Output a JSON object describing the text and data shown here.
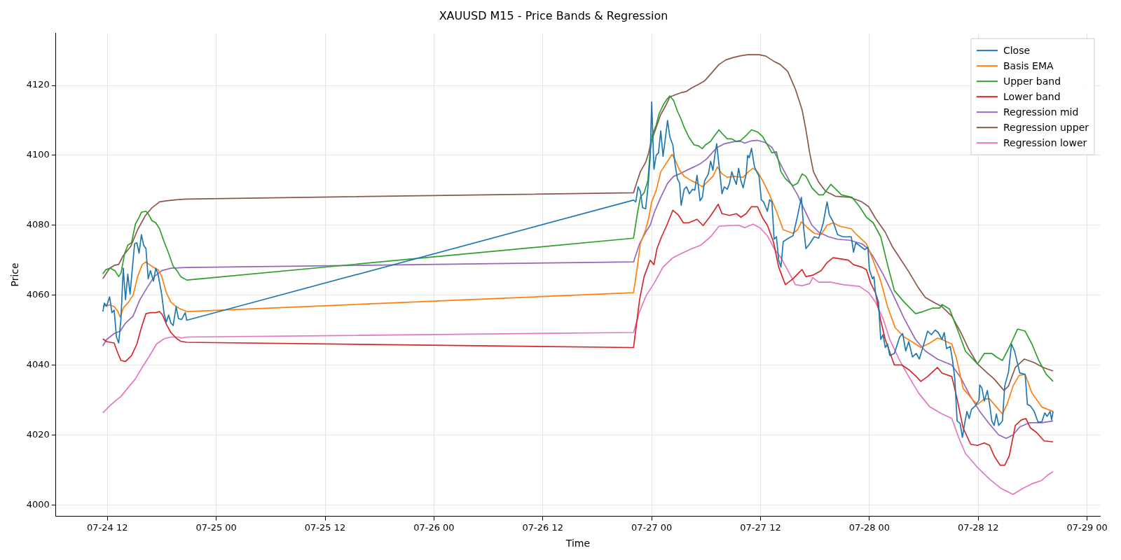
{
  "chart_data": {
    "type": "line",
    "title": "XAUUSD M15 - Price Bands & Regression",
    "xlabel": "Time",
    "ylabel": "Price",
    "xlim": [
      "--07-24T06:20",
      "--07-29T01:25"
    ],
    "ylim": [
      3996.7,
      4135
    ],
    "xticks": [
      {
        "value": "--07-24T12:00",
        "label": "07-24 12"
      },
      {
        "value": "--07-25T00:00",
        "label": "07-25 00"
      },
      {
        "value": "--07-25T12:00",
        "label": "07-25 12"
      },
      {
        "value": "--07-26T00:00",
        "label": "07-26 00"
      },
      {
        "value": "--07-26T12:00",
        "label": "07-26 12"
      },
      {
        "value": "--07-27T00:00",
        "label": "07-27 00"
      },
      {
        "value": "--07-27T12:00",
        "label": "07-27 12"
      },
      {
        "value": "--07-28T00:00",
        "label": "07-28 00"
      },
      {
        "value": "--07-28T12:00",
        "label": "07-28 12"
      },
      {
        "value": "--07-29T00:00",
        "label": "07-29 00"
      }
    ],
    "yticks": [
      4000,
      4020,
      4040,
      4060,
      4080,
      4100,
      4120
    ],
    "grid": true,
    "legend": "top right",
    "series": [
      {
        "name": "Close",
        "color": "#1f77b4",
        "x": [
          "--07-24T11:30",
          "--07-24T11:40",
          "--07-24T11:55",
          "--07-24T12:15",
          "--07-24T12:30",
          "--07-24T12:45",
          "--07-24T13:00",
          "--07-24T13:15",
          "--07-24T13:30",
          "--07-24T13:45",
          "--07-24T14:00",
          "--07-24T14:15",
          "--07-24T14:30",
          "--07-24T15:00",
          "--07-24T15:15",
          "--07-24T15:30",
          "--07-24T15:45",
          "--07-24T16:00",
          "--07-24T16:15",
          "--07-24T16:30",
          "--07-24T16:45",
          "--07-24T17:05",
          "--07-24T17:20",
          "--07-24T17:35",
          "--07-24T18:00",
          "--07-24T18:15",
          "--07-24T18:30",
          "--07-24T18:45",
          "--07-24T19:00",
          "--07-24T19:15",
          "--07-24T19:35",
          "--07-24T19:50",
          "--07-24T20:10",
          "--07-24T20:35",
          "--07-24T20:45",
          "--07-26T22:00",
          "--07-26T22:15",
          "--07-26T22:30",
          "--07-26T22:45",
          "--07-26T23:00",
          "--07-26T23:20",
          "--07-26T23:35",
          "--07-26T23:50",
          "--07-27T00:00",
          "--07-27T00:15",
          "--07-27T00:30",
          "--07-27T00:45",
          "--07-27T01:00",
          "--07-27T01:15",
          "--07-27T01:30",
          "--07-27T01:45",
          "--07-27T02:00",
          "--07-27T02:20",
          "--07-27T02:35",
          "--07-27T02:50",
          "--07-27T03:05",
          "--07-27T03:15",
          "--07-27T03:35",
          "--07-27T03:50",
          "--07-27T04:10",
          "--07-27T04:30",
          "--07-27T04:45",
          "--07-27T05:00",
          "--07-27T05:20",
          "--07-27T05:35",
          "--07-27T05:50",
          "--07-27T06:15",
          "--07-27T06:30",
          "--07-27T06:45",
          "--07-27T07:00",
          "--07-27T07:10",
          "--07-27T07:30",
          "--07-27T07:45",
          "--07-27T08:00",
          "--07-27T08:20",
          "--07-27T08:35",
          "--07-27T08:50",
          "--07-27T09:05",
          "--07-27T09:20",
          "--07-27T09:35",
          "--07-27T09:50",
          "--07-27T10:05",
          "--07-27T10:25",
          "--07-27T10:35",
          "--07-27T10:45",
          "--07-27T11:00",
          "--07-27T11:20",
          "--07-27T11:35",
          "--07-27T11:50",
          "--07-27T12:05",
          "--07-27T12:20",
          "--07-27T12:45",
          "--07-27T13:00",
          "--07-27T13:15",
          "--07-27T13:30",
          "--07-27T13:45",
          "--07-27T14:00",
          "--07-27T14:15",
          "--07-27T14:30",
          "--07-27T15:05",
          "--07-27T15:35",
          "--07-27T16:05",
          "--07-27T16:30",
          "--07-27T16:45",
          "--07-27T17:00",
          "--07-27T17:25",
          "--07-27T17:55",
          "--07-27T18:25",
          "--07-27T18:55",
          "--07-27T19:20",
          "--07-27T19:35",
          "--07-27T20:00",
          "--07-27T20:30",
          "--07-27T21:05",
          "--07-27T22:00",
          "--07-27T22:15",
          "--07-27T22:30",
          "--07-27T23:00",
          "--07-27T23:30",
          "--07-27T23:50",
          "--07-28T00:00",
          "--07-28T00:20",
          "--07-28T00:30",
          "--07-28T00:40",
          "--07-28T01:00",
          "--07-28T01:15",
          "--07-28T01:30",
          "--07-28T01:45",
          "--07-28T02:00",
          "--07-28T02:15",
          "--07-28T02:45",
          "--07-28T03:20",
          "--07-28T03:40",
          "--07-28T04:00",
          "--07-28T04:20",
          "--07-28T04:45",
          "--07-28T05:10",
          "--07-28T05:30",
          "--07-28T06:05",
          "--07-28T06:25",
          "--07-28T06:50",
          "--07-28T07:15",
          "--07-28T07:35",
          "--07-28T08:00",
          "--07-28T08:15",
          "--07-28T08:30",
          "--07-28T08:55",
          "--07-28T09:10",
          "--07-28T09:25",
          "--07-28T09:40",
          "--07-28T10:00",
          "--07-28T10:15",
          "--07-28T10:30",
          "--07-28T10:45",
          "--07-28T11:00",
          "--07-28T11:15",
          "--07-28T11:40",
          "--07-28T12:05",
          "--07-28T12:10",
          "--07-28T12:25",
          "--07-28T12:40",
          "--07-28T13:00",
          "--07-28T13:15",
          "--07-28T13:30",
          "--07-28T13:45",
          "--07-28T14:00",
          "--07-28T14:15",
          "--07-28T14:40",
          "--07-28T14:55",
          "--07-28T15:20",
          "--07-28T15:40",
          "--07-28T16:00",
          "--07-28T16:15",
          "--07-28T16:35",
          "--07-28T17:10",
          "--07-28T17:25",
          "--07-28T17:45",
          "--07-28T18:10",
          "--07-28T18:35",
          "--07-28T19:00",
          "--07-28T19:20",
          "--07-28T19:35",
          "--07-28T19:55",
          "--07-28T20:05",
          "--07-28T20:15"
        ],
        "values": [
          4055.3,
          4057.7,
          4056.8,
          4059.5,
          4055,
          4055.7,
          4048,
          4046.3,
          4053.3,
          4067.7,
          4058.7,
          4066,
          4060.3,
          4074.7,
          4075,
          4072,
          4077.3,
          4074.3,
          4073.3,
          4064.7,
          4067,
          4064,
          4067.7,
          4066,
          4060,
          4054.7,
          4052.3,
          4054.3,
          4052,
          4051.3,
          4056.7,
          4053.3,
          4053,
          4055,
          4052.8,
          4087.2,
          4086.7,
          4091,
          4089.7,
          4085,
          4084.7,
          4090.7,
          4099.3,
          4115.3,
          4096,
          4100,
          4100.7,
          4107,
          4099.7,
          4104.7,
          4110,
          4105.3,
          4103,
          4097.3,
          4093.3,
          4092,
          4085.7,
          4090.3,
          4091,
          4089,
          4090.3,
          4090,
          4094.3,
          4087,
          4088,
          4092.7,
          4094.7,
          4098.3,
          4095.7,
          4100.7,
          4103.3,
          4095.3,
          4089,
          4091,
          4090.3,
          4092,
          4095.3,
          4093.3,
          4091.7,
          4096.3,
          4092.7,
          4090.7,
          4094.7,
          4100,
          4099.3,
          4102,
          4096.7,
          4095.3,
          4094,
          4087.3,
          4086.7,
          4084,
          4087.3,
          4086.7,
          4076,
          4076.7,
          4070,
          4068,
          4075.3,
          4076.3,
          4077,
          4082.7,
          4088,
          4079.3,
          4073.3,
          4074.7,
          4076.7,
          4076.3,
          4080.7,
          4086.7,
          4083,
          4081,
          4077.3,
          4076.7,
          4076.7,
          4072.3,
          4075,
          4074,
          4073,
          4073.7,
          4067.3,
          4064.7,
          4065.3,
          4060.7,
          4058,
          4047.3,
          4048.7,
          4045,
          4046,
          4042.7,
          4043.3,
          4048,
          4049,
          4044,
          4046.7,
          4042.3,
          4043.3,
          4041.7,
          4046.7,
          4049.7,
          4048.7,
          4050,
          4049.3,
          4047.3,
          4049.3,
          4044.7,
          4045.3,
          4041.3,
          4036,
          4024,
          4023.3,
          4019.3,
          4023.3,
          4026.7,
          4024.7,
          4027.3,
          4028.3,
          4030,
          4034.3,
          4033.3,
          4029.7,
          4032.7,
          4028.7,
          4024,
          4022.7,
          4026,
          4022.7,
          4024,
          4034,
          4038,
          4046,
          4044,
          4041.3,
          4037.7,
          4037.3,
          4028.7,
          4028.3,
          4026.7,
          4023.7,
          4023.7,
          4026.3,
          4025.3,
          4026.7,
          4024.3,
          4026.7
        ]
      },
      {
        "name": "Basis EMA",
        "color": "#ff7f0e",
        "x": [
          "--07-24T11:30",
          "--07-24T12:15",
          "--07-24T12:45",
          "--07-24T13:10",
          "--07-24T13:25",
          "--07-24T13:45",
          "--07-24T14:20",
          "--07-24T14:50",
          "--07-24T15:20",
          "--07-24T15:50",
          "--07-24T16:15",
          "--07-24T16:40",
          "--07-24T17:05",
          "--07-24T17:35",
          "--07-24T18:00",
          "--07-24T18:30",
          "--07-24T19:00",
          "--07-24T19:35",
          "--07-24T20:05",
          "--07-24T20:45",
          "--07-26T22:00",
          "--07-26T22:25",
          "--07-26T22:45",
          "--07-26T23:20",
          "--07-26T23:40",
          "--07-27T00:00",
          "--07-27T00:30",
          "--07-27T01:00",
          "--07-27T01:30",
          "--07-27T02:00",
          "--07-27T02:15",
          "--07-27T02:35",
          "--07-27T03:05",
          "--07-27T03:35",
          "--07-27T04:25",
          "--07-27T05:00",
          "--07-27T05:35",
          "--07-27T06:15",
          "--07-27T06:45",
          "--07-27T07:15",
          "--07-27T07:45",
          "--07-27T08:20",
          "--07-27T09:05",
          "--07-27T10:05",
          "--07-27T10:40",
          "--07-27T11:10",
          "--07-27T11:40",
          "--07-27T12:15",
          "--07-27T13:00",
          "--07-27T13:45",
          "--07-27T14:30",
          "--07-27T15:35",
          "--07-27T16:05",
          "--07-27T16:30",
          "--07-27T17:10",
          "--07-27T17:55",
          "--07-27T18:40",
          "--07-27T19:20",
          "--07-27T20:00",
          "--07-27T20:45",
          "--07-27T22:00",
          "--07-27T22:35",
          "--07-27T23:40",
          "--07-28T00:25",
          "--07-28T01:15",
          "--07-28T02:00",
          "--07-28T02:50",
          "--07-28T03:50",
          "--07-28T04:55",
          "--07-28T05:40",
          "--07-28T06:40",
          "--07-28T07:30",
          "--07-28T08:00",
          "--07-28T09:05",
          "--07-28T09:35",
          "--07-28T10:20",
          "--07-28T11:25",
          "--07-28T11:55",
          "--07-28T12:40",
          "--07-28T13:15",
          "--07-28T14:00",
          "--07-28T14:40",
          "--07-28T15:10",
          "--07-28T15:50",
          "--07-28T16:30",
          "--07-28T17:10",
          "--07-28T17:55",
          "--07-28T19:00",
          "--07-28T20:15"
        ],
        "values": [
          4056.8,
          4057.2,
          4056.7,
          4055.3,
          4053.7,
          4056.3,
          4058,
          4060,
          4065.3,
          4068.7,
          4069.5,
          4068.7,
          4068,
          4067.3,
          4065.3,
          4060.7,
          4058,
          4056.7,
          4056,
          4055.3,
          4060.7,
          4068,
          4074.7,
          4078.7,
          4082,
          4086.7,
          4090,
          4095.3,
          4097.3,
          4099.3,
          4100.3,
          4098.7,
          4095.7,
          4094,
          4092.7,
          4092,
          4091,
          4092.7,
          4094,
          4096.7,
          4094.7,
          4093.7,
          4094,
          4093.7,
          4095.3,
          4096.3,
          4095.3,
          4092.7,
          4088.7,
          4084,
          4078.7,
          4077.7,
          4078.7,
          4081,
          4079.3,
          4077.7,
          4077.3,
          4080,
          4080.7,
          4079.7,
          4079,
          4077.3,
          4074.7,
          4070,
          4064,
          4056.7,
          4050.7,
          4048,
          4046.3,
          4045,
          4046.3,
          4047.7,
          4047.3,
          4046,
          4042,
          4033.3,
          4030,
          4028.7,
          4030.3,
          4030.3,
          4028,
          4026,
          4028.7,
          4034,
          4037,
          4037.3,
          4032,
          4028,
          4026.7
        ]
      },
      {
        "name": "Upper band",
        "color": "#2ca02c",
        "x": [
          "--07-24T11:30",
          "--07-24T11:50",
          "--07-24T12:20",
          "--07-24T12:50",
          "--07-24T13:15",
          "--07-24T13:30",
          "--07-24T13:55",
          "--07-24T14:15",
          "--07-24T14:40",
          "--07-24T15:05",
          "--07-24T15:30",
          "--07-24T15:45",
          "--07-24T16:15",
          "--07-24T16:30",
          "--07-24T16:55",
          "--07-24T17:20",
          "--07-24T17:45",
          "--07-24T18:15",
          "--07-24T18:45",
          "--07-24T19:15",
          "--07-24T19:40",
          "--07-24T20:05",
          "--07-24T20:30",
          "--07-24T20:45",
          "--07-26T22:00",
          "--07-26T22:25",
          "--07-26T22:45",
          "--07-26T23:10",
          "--07-26T23:35",
          "--07-26T23:50",
          "--07-27T00:05",
          "--07-27T00:30",
          "--07-27T00:50",
          "--07-27T01:15",
          "--07-27T01:40",
          "--07-27T02:00",
          "--07-27T02:25",
          "--07-27T02:50",
          "--07-27T03:15",
          "--07-27T03:35",
          "--07-27T04:05",
          "--07-27T04:40",
          "--07-27T05:10",
          "--07-27T05:35",
          "--07-27T05:55",
          "--07-27T06:30",
          "--07-27T06:50",
          "--07-27T07:25",
          "--07-27T07:45",
          "--07-27T08:20",
          "--07-27T08:50",
          "--07-27T09:20",
          "--07-27T09:50",
          "--07-27T10:25",
          "--07-27T11:00",
          "--07-27T11:40",
          "--07-27T12:15",
          "--07-27T12:45",
          "--07-27T13:15",
          "--07-27T13:45",
          "--07-27T14:15",
          "--07-27T14:45",
          "--07-27T15:35",
          "--07-27T16:05",
          "--07-27T16:35",
          "--07-27T17:00",
          "--07-27T17:40",
          "--07-27T18:25",
          "--07-27T18:55",
          "--07-27T19:45",
          "--07-27T20:25",
          "--07-27T20:55",
          "--07-27T22:05",
          "--07-27T22:55",
          "--07-27T23:40",
          "--07-28T00:25",
          "--07-28T01:15",
          "--07-28T02:00",
          "--07-28T02:45",
          "--07-28T03:50",
          "--07-28T05:05",
          "--07-28T05:55",
          "--07-28T07:00",
          "--07-28T07:45",
          "--07-28T08:00",
          "--07-28T08:50",
          "--07-28T09:50",
          "--07-28T10:35",
          "--07-28T11:55",
          "--07-28T12:40",
          "--07-28T13:30",
          "--07-28T14:00",
          "--07-28T14:40",
          "--07-28T15:35",
          "--07-28T16:20",
          "--07-28T17:10",
          "--07-28T17:55",
          "--07-28T18:40",
          "--07-28T19:30",
          "--07-28T20:15"
        ],
        "values": [
          4066.1,
          4067.3,
          4067.7,
          4067,
          4065.3,
          4066.3,
          4072,
          4074.3,
          4075,
          4080.3,
          4082.3,
          4083.7,
          4084,
          4083.3,
          4081.3,
          4080.7,
          4079,
          4075.3,
          4072,
          4068.3,
          4067,
          4065.3,
          4064.7,
          4064.3,
          4076.3,
          4083.3,
          4088,
          4089.3,
          4092.7,
          4101.3,
          4106,
          4108.7,
          4112,
          4114.3,
          4116,
          4117,
          4115.7,
          4112.7,
          4110.3,
          4108,
          4105.3,
          4103,
          4102.7,
          4101.9,
          4103,
          4104,
          4105.3,
          4107.3,
          4106.3,
          4104.7,
          4104.7,
          4104,
          4104.3,
          4105.7,
          4107.3,
          4106.7,
          4105.3,
          4103,
          4100.7,
          4101,
          4095.3,
          4093.3,
          4091.3,
          4092,
          4094.7,
          4094,
          4090.7,
          4088.7,
          4088.7,
          4091.7,
          4090,
          4088.7,
          4088,
          4085.3,
          4082.3,
          4080.7,
          4076.7,
          4068.7,
          4061.3,
          4058,
          4054.7,
          4055.3,
          4056.3,
          4056.3,
          4057.3,
          4056,
          4049.3,
          4044,
          4040.3,
          4043.3,
          4043.3,
          4042.3,
          4041.3,
          4046,
          4050.3,
          4049.7,
          4046,
          4041.3,
          4037.3,
          4035.3
        ]
      },
      {
        "name": "Lower band",
        "color": "#d62728",
        "x": [
          "--07-24T11:30",
          "--07-24T11:55",
          "--07-24T12:45",
          "--07-24T13:10",
          "--07-24T13:30",
          "--07-24T14:00",
          "--07-24T14:40",
          "--07-24T15:15",
          "--07-24T15:45",
          "--07-24T16:15",
          "--07-24T16:45",
          "--07-24T17:20",
          "--07-24T17:45",
          "--07-24T18:05",
          "--07-24T18:30",
          "--07-24T19:00",
          "--07-24T19:35",
          "--07-24T20:05",
          "--07-24T20:45",
          "--07-26T22:00",
          "--07-26T22:40",
          "--07-26T23:10",
          "--07-26T23:50",
          "--07-27T00:15",
          "--07-27T00:35",
          "--07-27T01:05",
          "--07-27T01:40",
          "--07-27T02:20",
          "--07-27T02:55",
          "--07-27T03:30",
          "--07-27T04:05",
          "--07-27T05:00",
          "--07-27T05:40",
          "--07-27T06:30",
          "--07-27T07:20",
          "--07-27T07:45",
          "--07-27T08:35",
          "--07-27T09:20",
          "--07-27T09:50",
          "--07-27T10:25",
          "--07-27T11:00",
          "--07-27T11:40",
          "--07-27T12:15",
          "--07-27T12:45",
          "--07-27T13:25",
          "--07-27T14:00",
          "--07-27T14:35",
          "--07-27T14:45",
          "--07-27T15:35",
          "--07-27T16:20",
          "--07-27T16:35",
          "--07-27T17:00",
          "--07-27T17:45",
          "--07-27T18:40",
          "--07-27T19:20",
          "--07-27T20:00",
          "--07-27T21:40",
          "--07-27T22:15",
          "--07-27T23:10",
          "--07-27T23:40",
          "--07-28T00:10",
          "--07-28T00:40",
          "--07-28T01:15",
          "--07-28T01:45",
          "--07-28T02:45",
          "--07-28T03:35",
          "--07-28T04:20",
          "--07-28T05:10",
          "--07-28T05:40",
          "--07-28T06:25",
          "--07-28T07:30",
          "--07-28T08:00",
          "--07-28T09:05",
          "--07-28T09:35",
          "--07-28T10:20",
          "--07-28T11:10",
          "--07-28T11:55",
          "--07-28T12:40",
          "--07-28T13:15",
          "--07-28T13:45",
          "--07-28T14:25",
          "--07-28T14:55",
          "--07-28T15:25",
          "--07-28T16:05",
          "--07-28T16:45",
          "--07-28T17:15",
          "--07-28T17:45",
          "--07-28T18:25",
          "--07-28T19:15",
          "--07-28T20:15"
        ],
        "values": [
          4047.5,
          4046.7,
          4046.3,
          4043.3,
          4041.3,
          4041,
          4042.7,
          4046,
          4050.7,
          4054.7,
          4055,
          4055,
          4055.3,
          4054.3,
          4051.7,
          4049.3,
          4047.7,
          4046.8,
          4046.5,
          4045,
          4058.7,
          4065.3,
          4070,
          4068.7,
          4073.3,
          4076.7,
          4080,
          4084.3,
          4083,
          4080.7,
          4080.7,
          4081.7,
          4079.9,
          4082.7,
          4086,
          4083.3,
          4082.8,
          4083.3,
          4082.3,
          4083.3,
          4085.3,
          4085.3,
          4082,
          4080,
          4075.3,
          4068,
          4064,
          4063,
          4064.7,
          4066.7,
          4067.3,
          4065.3,
          4065.7,
          4067,
          4069.3,
          4070.7,
          4070,
          4068.7,
          4068,
          4067.3,
          4063.3,
          4060.7,
          4052.7,
          4047.3,
          4040,
          4040,
          4038.7,
          4036.7,
          4035.3,
          4036.7,
          4039.3,
          4037.7,
          4036.7,
          4031.3,
          4022,
          4017.3,
          4017,
          4017.7,
          4017,
          4014,
          4011.3,
          4011.3,
          4014,
          4022.7,
          4024.3,
          4024.7,
          4022,
          4020.7,
          4018.3,
          4018
        ]
      },
      {
        "name": "Regression mid",
        "color": "#9467bd",
        "x": [
          "--07-24T11:30",
          "--07-24T11:55",
          "--07-24T12:45",
          "--07-24T13:25",
          "--07-24T14:00",
          "--07-24T14:50",
          "--07-24T15:35",
          "--07-24T16:25",
          "--07-24T17:10",
          "--07-24T18:00",
          "--07-24T19:00",
          "--07-24T20:45",
          "--07-26T22:00",
          "--07-26T22:40",
          "--07-26T23:20",
          "--07-26T23:50",
          "--07-27T00:20",
          "--07-27T01:00",
          "--07-27T01:45",
          "--07-27T02:25",
          "--07-27T03:05",
          "--07-27T03:50",
          "--07-27T04:40",
          "--07-27T05:25",
          "--07-27T06:05",
          "--07-27T06:45",
          "--07-27T07:15",
          "--07-27T08:00",
          "--07-27T09:05",
          "--07-27T09:50",
          "--07-27T10:15",
          "--07-27T10:55",
          "--07-27T11:40",
          "--07-27T12:30",
          "--07-27T13:15",
          "--07-27T14:30",
          "--07-27T15:20",
          "--07-27T16:05",
          "--07-27T16:55",
          "--07-27T17:40",
          "--07-27T18:25",
          "--07-27T19:30",
          "--07-27T20:30",
          "--07-27T21:50",
          "--07-27T23:10",
          "--07-27T23:50",
          "--07-28T00:25",
          "--07-28T01:30",
          "--07-28T02:30",
          "--07-28T03:50",
          "--07-28T05:05",
          "--07-28T06:10",
          "--07-28T07:30",
          "--07-28T09:05",
          "--07-28T10:05",
          "--07-28T11:05",
          "--07-28T12:10",
          "--07-28T13:10",
          "--07-28T14:15",
          "--07-28T15:05",
          "--07-28T15:50",
          "--07-28T16:35",
          "--07-28T17:40",
          "--07-28T19:00",
          "--07-28T20:15"
        ],
        "values": [
          4045.5,
          4047.3,
          4049,
          4049.7,
          4052,
          4054,
          4058.7,
          4062.3,
          4065.3,
          4067,
          4067.7,
          4067.9,
          4069.5,
          4074.7,
          4078,
          4080,
          4084,
          4088,
          4092,
          4094,
          4094.7,
          4095.7,
          4096.7,
          4097.7,
          4099,
          4101,
          4102.3,
          4103.3,
          4103.9,
          4104,
          4103.5,
          4104.1,
          4104.3,
          4103.7,
          4102.3,
          4096,
          4092,
          4088.7,
          4084,
          4080,
          4078,
          4076.7,
          4076,
          4075.7,
          4074.7,
          4073.3,
          4071,
          4066,
          4060.7,
          4053.3,
          4047.3,
          4044,
          4041.7,
          4040,
          4036.3,
          4031.3,
          4026.7,
          4023.3,
          4020,
          4019,
          4020,
          4022.3,
          4023.5,
          4023.5,
          4024
        ]
      },
      {
        "name": "Regression upper",
        "color": "#8c564b",
        "x": [
          "--07-24T11:30",
          "--07-24T12:15",
          "--07-24T12:45",
          "--07-24T13:15",
          "--07-24T13:45",
          "--07-24T14:35",
          "--07-24T15:20",
          "--07-24T16:10",
          "--07-24T16:55",
          "--07-24T17:45",
          "--07-24T18:30",
          "--07-24T19:35",
          "--07-24T20:45",
          "--07-26T22:00",
          "--07-26T22:25",
          "--07-26T22:45",
          "--07-26T23:20",
          "--07-26T23:40",
          "--07-26T23:55",
          "--07-27T00:30",
          "--07-27T01:00",
          "--07-27T01:30",
          "--07-27T02:00",
          "--07-27T02:35",
          "--07-27T03:20",
          "--07-27T03:50",
          "--07-27T04:25",
          "--07-27T05:10",
          "--07-27T05:50",
          "--07-27T06:35",
          "--07-27T07:25",
          "--07-27T08:10",
          "--07-27T09:00",
          "--07-27T09:50",
          "--07-27T10:35",
          "--07-27T11:50",
          "--07-27T12:35",
          "--07-27T13:25",
          "--07-27T14:10",
          "--07-27T15:00",
          "--07-27T15:50",
          "--07-27T16:35",
          "--07-27T17:00",
          "--07-27T17:25",
          "--07-27T17:50",
          "--07-27T18:25",
          "--07-27T19:10",
          "--07-27T20:15",
          "--07-27T21:50",
          "--07-27T23:10",
          "--07-27T23:55",
          "--07-28T00:40",
          "--07-28T01:45",
          "--07-28T02:30",
          "--07-28T03:20",
          "--07-28T04:20",
          "--07-28T05:25",
          "--07-28T06:10",
          "--07-28T07:15",
          "--07-28T08:00",
          "--07-28T09:05",
          "--07-28T10:05",
          "--07-28T10:55",
          "--07-28T11:55",
          "--07-28T13:00",
          "--07-28T13:45",
          "--07-28T14:50",
          "--07-28T15:20",
          "--07-28T16:05",
          "--07-28T17:05",
          "--07-28T18:10",
          "--07-28T19:10",
          "--07-28T20:15"
        ],
        "values": [
          4064.7,
          4067.7,
          4068.5,
          4068.8,
          4071.3,
          4074,
          4078.7,
          4082.7,
          4085,
          4086.7,
          4087,
          4087.3,
          4087.5,
          4089.3,
          4092.7,
          4095.3,
          4098,
          4100.7,
          4103.7,
          4108,
          4111.7,
          4114,
          4116.7,
          4117.3,
          4118,
          4118.3,
          4119.3,
          4120.3,
          4121.3,
          4123.5,
          4126,
          4127.3,
          4128,
          4128.5,
          4128.8,
          4128.8,
          4128.4,
          4127,
          4126,
          4124,
          4119,
          4113,
          4107.3,
          4100.7,
          4095.3,
          4092.3,
          4089.7,
          4088.3,
          4088,
          4086.7,
          4085.3,
          4082,
          4078,
          4074,
          4070.7,
          4066.7,
          4062,
          4059.3,
          4057.7,
          4056.7,
          4054,
          4049.3,
          4044.7,
          4040.3,
          4037.7,
          4036,
          4032.7,
          4034,
          4039.3,
          4041.7,
          4040.7,
          4039.3,
          4038.3
        ]
      },
      {
        "name": "Regression lower",
        "color": "#e377c2",
        "x": [
          "--07-24T11:30",
          "--07-24T12:15",
          "--07-24T13:00",
          "--07-24T13:30",
          "--07-24T14:20",
          "--07-24T15:05",
          "--07-24T15:50",
          "--07-24T16:40",
          "--07-24T17:25",
          "--07-24T18:15",
          "--07-24T19:00",
          "--07-24T19:50",
          "--07-24T20:10",
          "--07-24T20:45",
          "--07-26T22:00",
          "--07-26T22:40",
          "--07-26T23:25",
          "--07-27T00:15",
          "--07-27T01:15",
          "--07-27T02:20",
          "--07-27T03:20",
          "--07-27T04:25",
          "--07-27T05:25",
          "--07-27T06:30",
          "--07-27T07:25",
          "--07-27T08:35",
          "--07-27T09:35",
          "--07-27T10:15",
          "--07-27T11:10",
          "--07-27T11:55",
          "--07-27T12:45",
          "--07-27T13:30",
          "--07-27T14:15",
          "--07-27T15:05",
          "--07-27T15:50",
          "--07-27T16:35",
          "--07-27T17:25",
          "--07-27T17:45",
          "--07-27T18:25",
          "--07-27T19:45",
          "--07-27T21:05",
          "--07-27T22:55",
          "--07-27T23:55",
          "--07-28T00:40",
          "--07-28T01:30",
          "--07-28T02:15",
          "--07-28T03:20",
          "--07-28T04:20",
          "--07-28T05:25",
          "--07-28T06:40",
          "--07-28T08:00",
          "--07-28T09:05",
          "--07-28T09:50",
          "--07-28T10:35",
          "--07-28T11:55",
          "--07-28T13:15",
          "--07-28T14:30",
          "--07-28T15:50",
          "--07-28T16:55",
          "--07-28T17:55",
          "--07-28T19:00",
          "--07-28T19:45",
          "--07-28T20:15"
        ],
        "values": [
          4026.3,
          4028.3,
          4030,
          4031,
          4033.7,
          4036,
          4039.3,
          4042.7,
          4046,
          4047.5,
          4048,
          4048,
          4047.7,
          4048,
          4049.3,
          4055.3,
          4060,
          4063.3,
          4068,
          4070.7,
          4072,
          4073.3,
          4074.3,
          4076.7,
          4079.7,
          4079.9,
          4080,
          4079.3,
          4080.3,
          4079.3,
          4077,
          4073.3,
          4070.7,
          4066.7,
          4063,
          4062.7,
          4063.3,
          4065,
          4063.7,
          4063.7,
          4063,
          4062.5,
          4060.7,
          4058,
          4053.3,
          4047.3,
          4041.3,
          4036.7,
          4032,
          4028,
          4026,
          4024.7,
          4019.3,
          4014.7,
          4010.7,
          4007.3,
          4004.7,
          4003,
          4004.7,
          4006,
          4007,
          4008.7,
          4009.5
        ]
      }
    ]
  }
}
